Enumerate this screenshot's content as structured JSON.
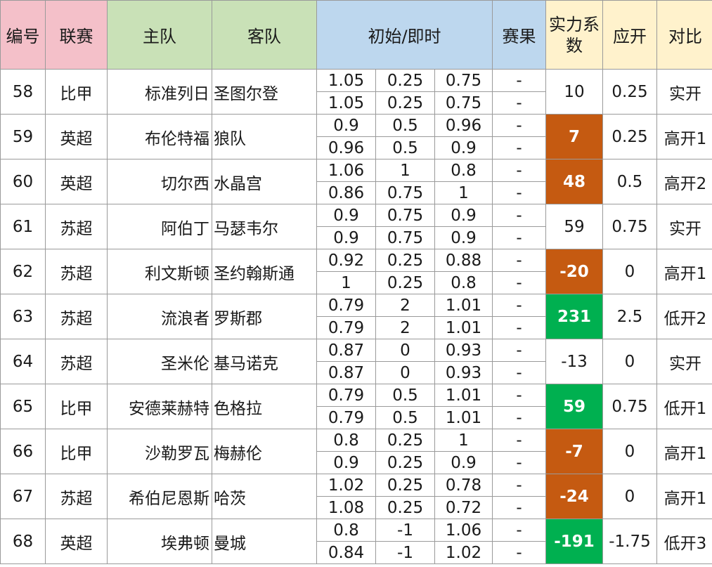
{
  "colors": {
    "header_no_league": "#f4c0c9",
    "header_teams": "#c9e1b7",
    "header_odds_result": "#bdd7ee",
    "header_strength_expected_compare": "#fff2cc",
    "highlight_orange": "#c55a11",
    "highlight_green": "#00b050"
  },
  "header": {
    "no": "编号",
    "league": "联赛",
    "home": "主队",
    "away": "客队",
    "odds": "初始/即时",
    "result": "赛果",
    "strength": "实力系数",
    "expected": "应开",
    "compare": "对比"
  },
  "rows": [
    {
      "no": "58",
      "league": "比甲",
      "home": "标准列日",
      "away": "圣图尔登",
      "odds": [
        [
          "1.05",
          "0.25",
          "0.75"
        ],
        [
          "1.05",
          "0.25",
          "0.75"
        ]
      ],
      "result": [
        "-",
        "-"
      ],
      "strength": "10",
      "highlight": "none",
      "expected": "0.25",
      "compare": "实开"
    },
    {
      "no": "59",
      "league": "英超",
      "home": "布伦特福",
      "away": "狼队",
      "odds": [
        [
          "0.9",
          "0.5",
          "0.96"
        ],
        [
          "0.96",
          "0.5",
          "0.9"
        ]
      ],
      "result": [
        "-",
        "-"
      ],
      "strength": "7",
      "highlight": "orange",
      "expected": "0.25",
      "compare": "高开1"
    },
    {
      "no": "60",
      "league": "英超",
      "home": "切尔西",
      "away": "水晶宫",
      "odds": [
        [
          "1.06",
          "1",
          "0.8"
        ],
        [
          "0.86",
          "0.75",
          "1"
        ]
      ],
      "result": [
        "-",
        "-"
      ],
      "strength": "48",
      "highlight": "orange",
      "expected": "0.5",
      "compare": "高开2"
    },
    {
      "no": "61",
      "league": "苏超",
      "home": "阿伯丁",
      "away": "马瑟韦尔",
      "odds": [
        [
          "0.9",
          "0.75",
          "0.9"
        ],
        [
          "0.9",
          "0.75",
          "0.9"
        ]
      ],
      "result": [
        "-",
        "-"
      ],
      "strength": "59",
      "highlight": "none",
      "expected": "0.75",
      "compare": "实开"
    },
    {
      "no": "62",
      "league": "苏超",
      "home": "利文斯顿",
      "away": "圣约翰斯通",
      "odds": [
        [
          "0.92",
          "0.25",
          "0.88"
        ],
        [
          "1",
          "0.25",
          "0.8"
        ]
      ],
      "result": [
        "-",
        "-"
      ],
      "strength": "-20",
      "highlight": "orange",
      "expected": "0",
      "compare": "高开1"
    },
    {
      "no": "63",
      "league": "苏超",
      "home": "流浪者",
      "away": "罗斯郡",
      "odds": [
        [
          "0.79",
          "2",
          "1.01"
        ],
        [
          "0.79",
          "2",
          "1.01"
        ]
      ],
      "result": [
        "-",
        "-"
      ],
      "strength": "231",
      "highlight": "green",
      "expected": "2.5",
      "compare": "低开2"
    },
    {
      "no": "64",
      "league": "苏超",
      "home": "圣米伦",
      "away": "基马诺克",
      "odds": [
        [
          "0.87",
          "0",
          "0.93"
        ],
        [
          "0.87",
          "0",
          "0.93"
        ]
      ],
      "result": [
        "-",
        "-"
      ],
      "strength": "-13",
      "highlight": "none",
      "expected": "0",
      "compare": "实开"
    },
    {
      "no": "65",
      "league": "比甲",
      "home": "安德莱赫特",
      "away": "色格拉",
      "odds": [
        [
          "0.79",
          "0.5",
          "1.01"
        ],
        [
          "0.79",
          "0.5",
          "1.01"
        ]
      ],
      "result": [
        "-",
        "-"
      ],
      "strength": "59",
      "highlight": "green",
      "expected": "0.75",
      "compare": "低开1"
    },
    {
      "no": "66",
      "league": "比甲",
      "home": "沙勒罗瓦",
      "away": "梅赫伦",
      "odds": [
        [
          "0.8",
          "0.25",
          "1"
        ],
        [
          "0.9",
          "0.25",
          "0.9"
        ]
      ],
      "result": [
        "-",
        "-"
      ],
      "strength": "-7",
      "highlight": "orange",
      "expected": "0",
      "compare": "高开1"
    },
    {
      "no": "67",
      "league": "苏超",
      "home": "希伯尼恩斯",
      "away": "哈茨",
      "odds": [
        [
          "1.02",
          "0.25",
          "0.78"
        ],
        [
          "1.08",
          "0.25",
          "0.72"
        ]
      ],
      "result": [
        "-",
        "-"
      ],
      "strength": "-24",
      "highlight": "orange",
      "expected": "0",
      "compare": "高开1"
    },
    {
      "no": "68",
      "league": "英超",
      "home": "埃弗顿",
      "away": "曼城",
      "odds": [
        [
          "0.8",
          "-1",
          "1.06"
        ],
        [
          "0.84",
          "-1",
          "1.02"
        ]
      ],
      "result": [
        "-",
        "-"
      ],
      "strength": "-191",
      "highlight": "green",
      "expected": "-1.75",
      "compare": "低开3"
    }
  ]
}
